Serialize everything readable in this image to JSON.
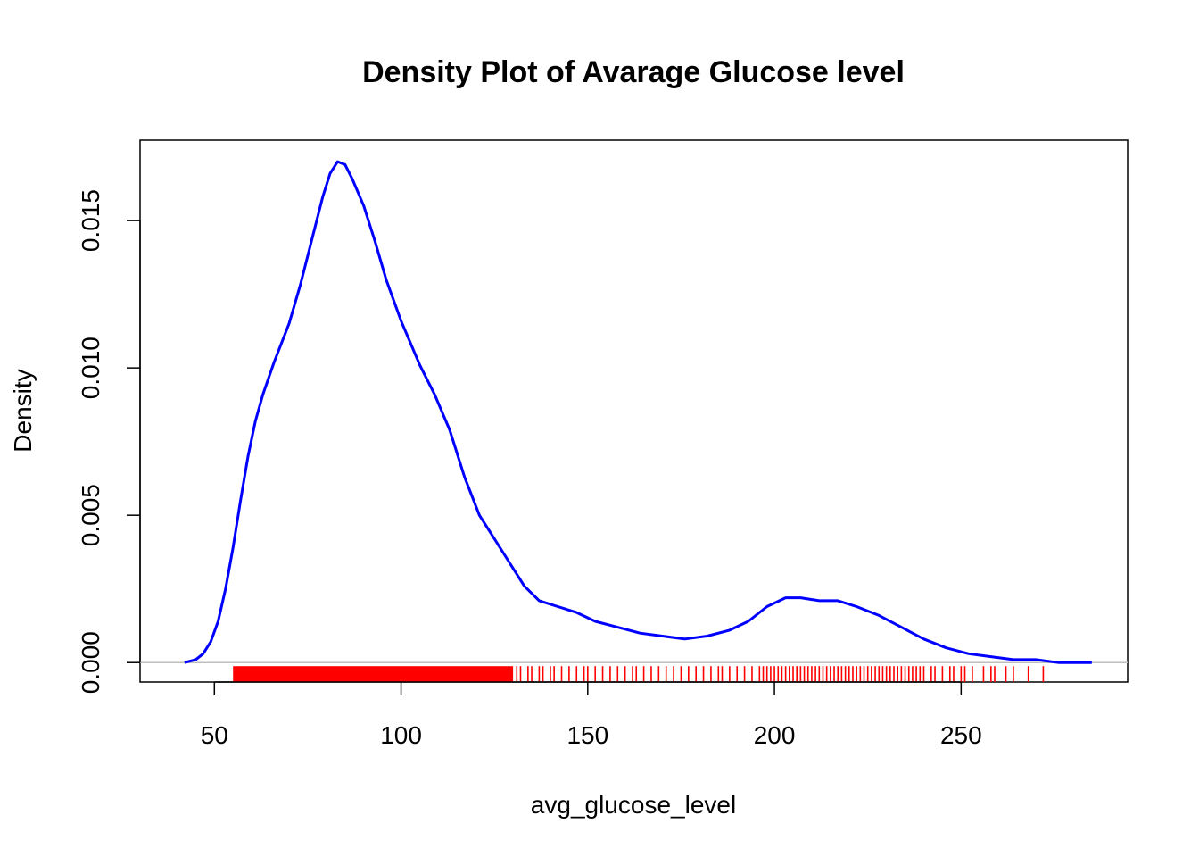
{
  "chart_data": {
    "type": "line",
    "title": "Density Plot of Avarage Glucose level",
    "xlabel": "avg_glucose_level",
    "ylabel": "Density",
    "xlim": [
      30.1,
      294.6
    ],
    "ylim": [
      -0.00066,
      0.01773
    ],
    "x_ticks": [
      50,
      100,
      150,
      200,
      250
    ],
    "x_tick_labels": [
      "50",
      "100",
      "150",
      "200",
      "250"
    ],
    "y_ticks": [
      0,
      0.005,
      0.01,
      0.015
    ],
    "y_tick_labels": [
      "0.000",
      "0.005",
      "0.010",
      "0.015"
    ],
    "grid": false,
    "legend": "none",
    "colors": {
      "density_line": "#0000ff",
      "rug": "#ff0000",
      "zero_line": "#bebebe"
    },
    "series": [
      {
        "x": [
          42,
          45,
          47,
          49,
          51,
          53,
          55,
          57,
          59,
          61,
          63,
          66,
          70,
          73,
          76,
          79,
          81,
          83,
          85,
          87,
          90,
          93,
          96,
          100,
          105,
          109,
          113,
          117,
          121,
          125,
          129,
          133,
          137,
          142,
          147,
          152,
          158,
          164,
          170,
          176,
          182,
          188,
          193,
          198,
          203,
          207,
          212,
          217,
          222,
          228,
          234,
          240,
          246,
          252,
          258,
          264,
          270,
          276,
          280,
          285
        ],
        "y": [
          0.0,
          0.0001,
          0.0003,
          0.0007,
          0.0014,
          0.0025,
          0.0039,
          0.0055,
          0.007,
          0.0082,
          0.0091,
          0.0102,
          0.0115,
          0.0128,
          0.0143,
          0.0158,
          0.0166,
          0.017,
          0.0169,
          0.0164,
          0.0155,
          0.0143,
          0.013,
          0.0116,
          0.0101,
          0.0091,
          0.0079,
          0.0063,
          0.005,
          0.0042,
          0.0034,
          0.0026,
          0.0021,
          0.0019,
          0.0017,
          0.0014,
          0.0012,
          0.001,
          0.0009,
          0.0008,
          0.0009,
          0.0011,
          0.0014,
          0.0019,
          0.0022,
          0.0022,
          0.0021,
          0.0021,
          0.0019,
          0.0016,
          0.0012,
          0.0008,
          0.0005,
          0.0003,
          0.0002,
          0.0001,
          0.0001,
          0.0,
          0.0,
          0.0
        ]
      }
    ],
    "rug": {
      "dense_range": [
        55,
        130
      ],
      "sparse_values": [
        131,
        132,
        134,
        135,
        137,
        138,
        140,
        141,
        143,
        145,
        147,
        149,
        150,
        152,
        154,
        156,
        158,
        160,
        162,
        163,
        165,
        167,
        169,
        171,
        173,
        175,
        177,
        179,
        181,
        183,
        185,
        186,
        188,
        190,
        192,
        194,
        196,
        197,
        198,
        199,
        200,
        201,
        202,
        203,
        204,
        205,
        206,
        207,
        208,
        209,
        210,
        211,
        212,
        213,
        214,
        215,
        216,
        217,
        218,
        219,
        220,
        221,
        222,
        223,
        224,
        225,
        226,
        227,
        228,
        229,
        230,
        231,
        232,
        233,
        234,
        235,
        236,
        237,
        238,
        239,
        240,
        242,
        243,
        245,
        247,
        248,
        250,
        251,
        253,
        256,
        258,
        259,
        262,
        264,
        268,
        272
      ]
    }
  }
}
